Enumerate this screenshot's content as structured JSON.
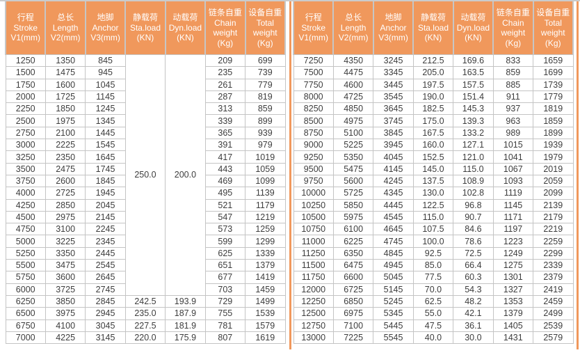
{
  "colors": {
    "header_bg": "#F0985C",
    "header_text": "#FFFFFF",
    "grid_border": "#C4C4C4",
    "header_gutter": "#C6C6C6",
    "data_text": "#3D3D3D",
    "divider": "#F0985C"
  },
  "columns": [
    {
      "name": "stroke",
      "label": "行程\nStroke\nV1(mm)"
    },
    {
      "name": "length",
      "label": "总长\nLength\nV2(mm)"
    },
    {
      "name": "anchor",
      "label": "地脚\nAnchor\nV3(mm)"
    },
    {
      "name": "static-load",
      "label": "静载荷\nSta.load\n(KN)"
    },
    {
      "name": "dynamic-load",
      "label": "动载荷\nDyn.load\n(KN)"
    },
    {
      "name": "chain-weight",
      "label": "链条自重\nChain\nweight\n(Kg)"
    },
    {
      "name": "total-weight",
      "label": "设备自重\nTotal\nweight\n(Kg)"
    }
  ],
  "left_table": {
    "merged": {
      "rows": 20,
      "static_load": "250.0",
      "dynamic_load": "200.0"
    },
    "rows": [
      [
        "1250",
        "1350",
        "845",
        null,
        null,
        "209",
        "699"
      ],
      [
        "1500",
        "1475",
        "945",
        null,
        null,
        "235",
        "739"
      ],
      [
        "1750",
        "1600",
        "1045",
        null,
        null,
        "261",
        "779"
      ],
      [
        "2000",
        "1725",
        "1145",
        null,
        null,
        "287",
        "819"
      ],
      [
        "2250",
        "1850",
        "1245",
        null,
        null,
        "313",
        "859"
      ],
      [
        "2500",
        "1975",
        "1345",
        null,
        null,
        "339",
        "899"
      ],
      [
        "2750",
        "2100",
        "1445",
        null,
        null,
        "365",
        "939"
      ],
      [
        "3000",
        "2225",
        "1545",
        null,
        null,
        "391",
        "979"
      ],
      [
        "3250",
        "2350",
        "1645",
        null,
        null,
        "417",
        "1019"
      ],
      [
        "3500",
        "2475",
        "1745",
        null,
        null,
        "443",
        "1059"
      ],
      [
        "3750",
        "2600",
        "1845",
        null,
        null,
        "469",
        "1099"
      ],
      [
        "4000",
        "2725",
        "1945",
        null,
        null,
        "495",
        "1139"
      ],
      [
        "4250",
        "2850",
        "2045",
        null,
        null,
        "521",
        "1179"
      ],
      [
        "4500",
        "2975",
        "2145",
        null,
        null,
        "547",
        "1219"
      ],
      [
        "4750",
        "3100",
        "2245",
        null,
        null,
        "573",
        "1259"
      ],
      [
        "5000",
        "3225",
        "2345",
        null,
        null,
        "599",
        "1299"
      ],
      [
        "5250",
        "3350",
        "2445",
        null,
        null,
        "625",
        "1339"
      ],
      [
        "5500",
        "3475",
        "2545",
        null,
        null,
        "651",
        "1379"
      ],
      [
        "5750",
        "3600",
        "2645",
        null,
        null,
        "677",
        "1419"
      ],
      [
        "6000",
        "3725",
        "2745",
        null,
        null,
        "703",
        "1459"
      ],
      [
        "6250",
        "3850",
        "2845",
        "242.5",
        "193.9",
        "729",
        "1499"
      ],
      [
        "6500",
        "3975",
        "2945",
        "235.0",
        "187.9",
        "755",
        "1539"
      ],
      [
        "6750",
        "4100",
        "3045",
        "227.5",
        "181.9",
        "781",
        "1579"
      ],
      [
        "7000",
        "4225",
        "3145",
        "220.0",
        "175.9",
        "807",
        "1619"
      ]
    ]
  },
  "right_table": {
    "rows": [
      [
        "7250",
        "4350",
        "3245",
        "212.5",
        "169.6",
        "833",
        "1659"
      ],
      [
        "7500",
        "4475",
        "3345",
        "205.0",
        "163.5",
        "859",
        "1699"
      ],
      [
        "7750",
        "4600",
        "3445",
        "197.5",
        "157.5",
        "885",
        "1739"
      ],
      [
        "8000",
        "4725",
        "3545",
        "190.0",
        "151.4",
        "911",
        "1779"
      ],
      [
        "8250",
        "4850",
        "3645",
        "182.5",
        "145.3",
        "937",
        "1819"
      ],
      [
        "8500",
        "4975",
        "3745",
        "175.0",
        "139.3",
        "963",
        "1859"
      ],
      [
        "8750",
        "5100",
        "3845",
        "167.5",
        "133.2",
        "989",
        "1899"
      ],
      [
        "9000",
        "5225",
        "3945",
        "160.0",
        "127.1",
        "1015",
        "1939"
      ],
      [
        "9250",
        "5350",
        "4045",
        "152.5",
        "121.0",
        "1041",
        "1979"
      ],
      [
        "9500",
        "5475",
        "4145",
        "145.0",
        "115.0",
        "1067",
        "2019"
      ],
      [
        "9750",
        "5600",
        "4245",
        "137.5",
        "108.9",
        "1093",
        "2059"
      ],
      [
        "10000",
        "5725",
        "4345",
        "130.0",
        "102.8",
        "1119",
        "2099"
      ],
      [
        "10250",
        "5850",
        "4445",
        "122.5",
        "96.8",
        "1145",
        "2139"
      ],
      [
        "10500",
        "5975",
        "4545",
        "115.0",
        "90.7",
        "1171",
        "2179"
      ],
      [
        "10750",
        "6100",
        "4645",
        "107.5",
        "84.6",
        "1197",
        "2219"
      ],
      [
        "11000",
        "6225",
        "4745",
        "100.0",
        "78.6",
        "1223",
        "2259"
      ],
      [
        "11250",
        "6350",
        "4845",
        "92.5",
        "72.5",
        "1249",
        "2299"
      ],
      [
        "11500",
        "6475",
        "4945",
        "85.0",
        "66.4",
        "1275",
        "2339"
      ],
      [
        "11750",
        "6600",
        "5045",
        "77.5",
        "60.3",
        "1301",
        "2379"
      ],
      [
        "12000",
        "6725",
        "5145",
        "70.0",
        "54.3",
        "1327",
        "2419"
      ],
      [
        "12250",
        "6850",
        "5245",
        "62.5",
        "48.2",
        "1353",
        "2459"
      ],
      [
        "12500",
        "6975",
        "5345",
        "55.0",
        "42.1",
        "1379",
        "2499"
      ],
      [
        "12750",
        "7100",
        "5445",
        "47.5",
        "36.1",
        "1405",
        "2539"
      ],
      [
        "13000",
        "7225",
        "5545",
        "40.0",
        "30.0",
        "1431",
        "2579"
      ]
    ]
  }
}
